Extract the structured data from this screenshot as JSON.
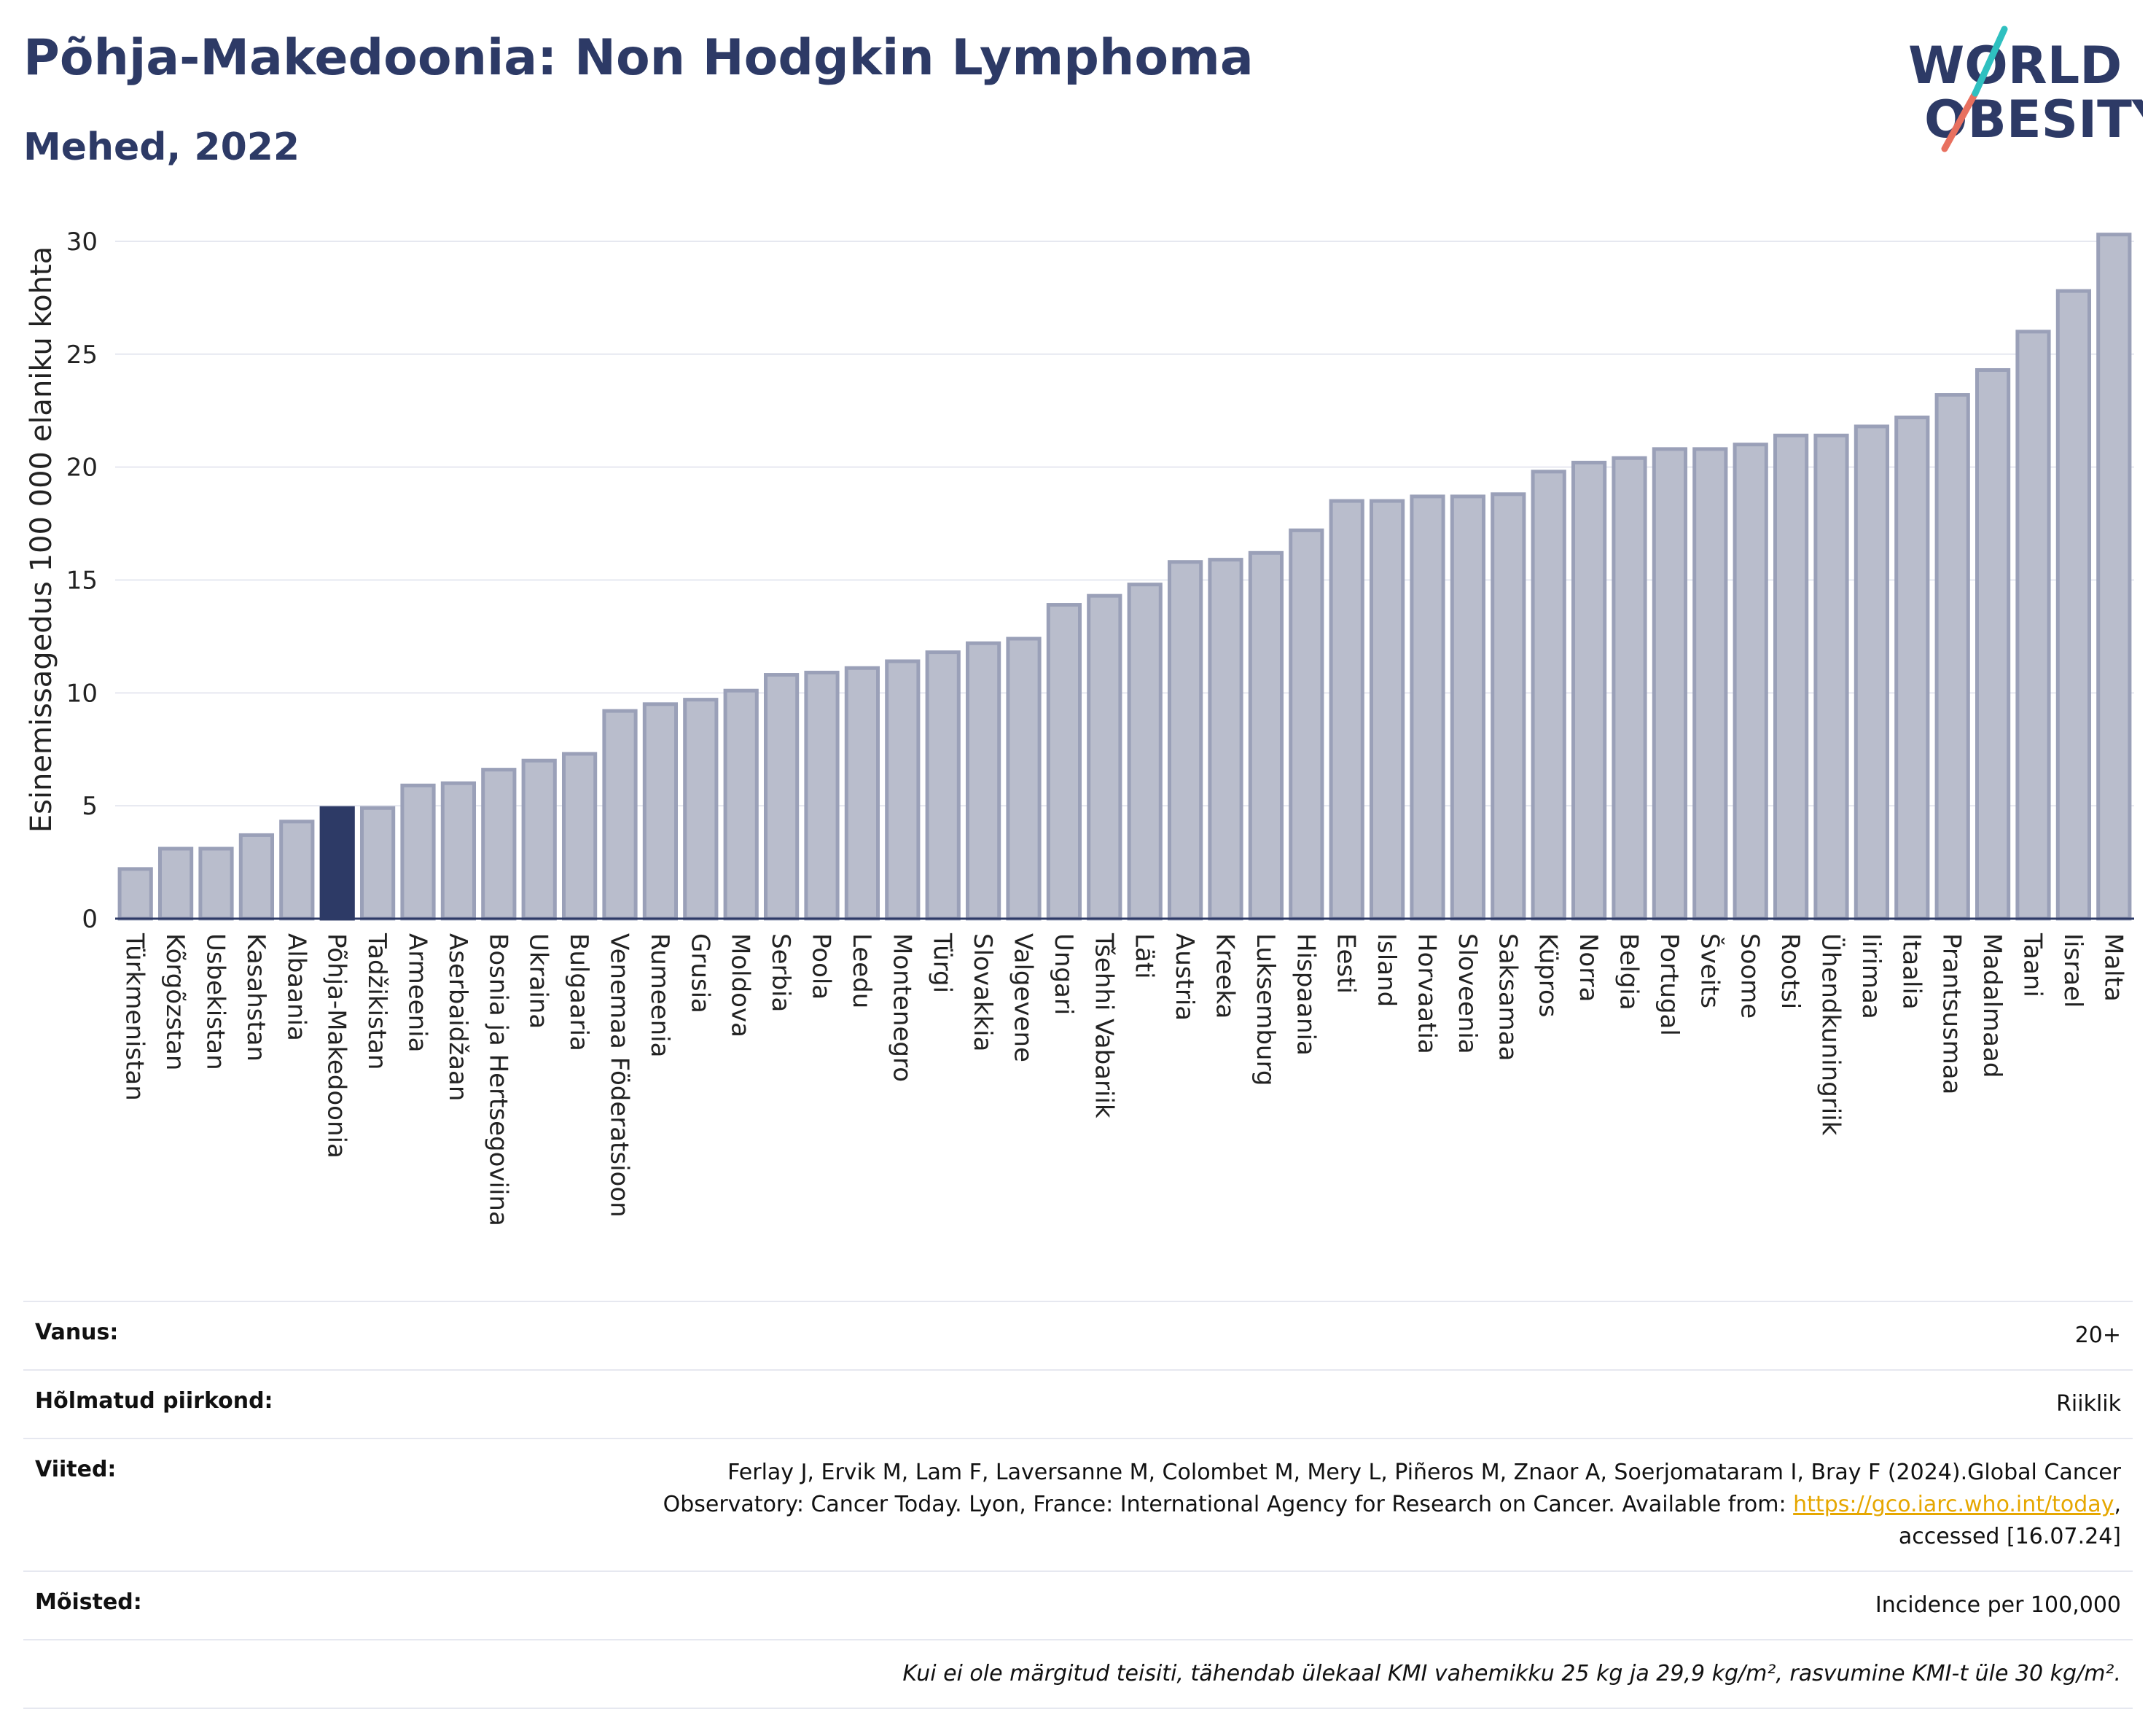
{
  "header": {
    "title": "Põhja-Makedoonia: Non Hodgkin Lymphoma",
    "subtitle": "Mehed, 2022",
    "logo_line1": "WORLD",
    "logo_line2": "OBESITY"
  },
  "colors": {
    "bar": "#b9bdcc",
    "bar_stroke": "#9aa0b8",
    "highlight": "#2d3a66",
    "text": "#2d3a66",
    "link": "#e6a700"
  },
  "chart_data": {
    "type": "bar",
    "title": "Põhja-Makedoonia: Non Hodgkin Lymphoma",
    "subtitle": "Mehed, 2022",
    "ylabel": "Esinemissagedus 100 000 elaniku kohta",
    "ylim": [
      0,
      31
    ],
    "yticks": [
      0,
      5,
      10,
      15,
      20,
      25,
      30
    ],
    "grid": true,
    "highlight": "Põhja-Makedoonia",
    "categories": [
      "Türkmenistan",
      "Kõrgõzstan",
      "Usbekistan",
      "Kasahstan",
      "Albaania",
      "Põhja-Makedoonia",
      "Tadžikistan",
      "Armeenia",
      "Aserbaidžaan",
      "Bosnia ja Hertsegoviina",
      "Ukraina",
      "Bulgaaria",
      "Venemaa Föderatsioon",
      "Rumeenia",
      "Grusia",
      "Moldova",
      "Serbia",
      "Poola",
      "Leedu",
      "Montenegro",
      "Türgi",
      "Slovakkia",
      "Valgevene",
      "Ungari",
      "Tšehhi Vabariik",
      "Läti",
      "Austria",
      "Kreeka",
      "Luksemburg",
      "Hispaania",
      "Eesti",
      "Island",
      "Horvaatia",
      "Sloveenia",
      "Saksamaa",
      "Küpros",
      "Norra",
      "Belgia",
      "Portugal",
      "Šveits",
      "Soome",
      "Rootsi",
      "Ühendkuningriik",
      "Iirimaa",
      "Itaalia",
      "Prantsusmaa",
      "Madalmaad",
      "Taani",
      "Iisrael",
      "Malta"
    ],
    "values": [
      2.2,
      3.1,
      3.1,
      3.7,
      4.3,
      4.9,
      4.9,
      5.9,
      6.0,
      6.6,
      7.0,
      7.3,
      9.2,
      9.5,
      9.7,
      10.1,
      10.8,
      10.9,
      11.1,
      11.4,
      11.8,
      12.2,
      12.4,
      13.9,
      14.3,
      14.8,
      15.8,
      15.9,
      16.2,
      17.2,
      18.5,
      18.5,
      18.7,
      18.7,
      18.8,
      19.8,
      20.2,
      20.4,
      20.8,
      20.8,
      21.0,
      21.4,
      21.4,
      21.8,
      22.2,
      23.2,
      24.3,
      26.0,
      27.8,
      30.3
    ]
  },
  "info": {
    "age_label": "Vanus:",
    "age_value": "20+",
    "region_label": "Hõlmatud piirkond:",
    "region_value": "Riiklik",
    "refs_label": "Viited:",
    "refs_text": "Ferlay J, Ervik M, Lam F, Laversanne M, Colombet M, Mery L, Piñeros M, Znaor A, Soerjomataram I, Bray F (2024).Global Cancer Observatory: Cancer Today. Lyon, France: International Agency for Research on Cancer. Available from: ",
    "refs_link": "https://gco.iarc.who.int/today",
    "refs_tail": ", accessed [16.07.24]",
    "def_label": "Mõisted:",
    "def_value": "Incidence per 100,000",
    "note": "Kui ei ole märgitud teisiti, tähendab ülekaal KMI vahemikku 25 kg ja 29,9 kg/m², rasvumine KMI-t üle 30 kg/m²."
  }
}
